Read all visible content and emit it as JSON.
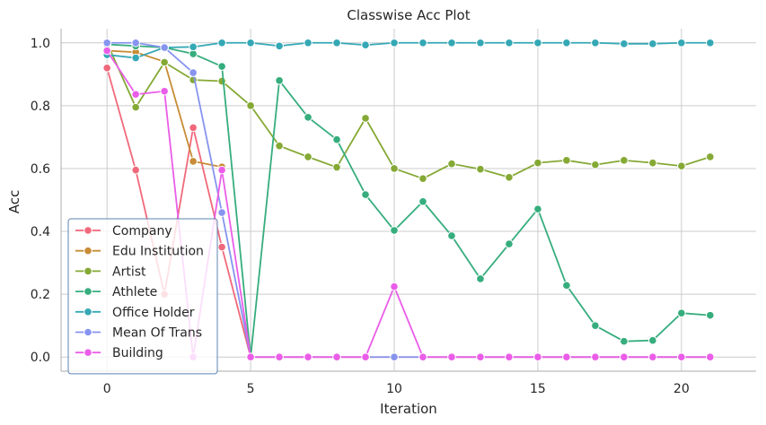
{
  "chart_data": {
    "type": "line",
    "title": "Classwise Acc Plot",
    "xlabel": "Iteration",
    "ylabel": "Acc",
    "xlim": [
      -1.6,
      22.6
    ],
    "ylim": [
      -0.045,
      1.045
    ],
    "x_ticks": [
      0,
      5,
      10,
      15,
      20
    ],
    "y_ticks": [
      0.0,
      0.2,
      0.4,
      0.6,
      0.8,
      1.0
    ],
    "y_tick_labels": [
      "0.0",
      "0.2",
      "0.4",
      "0.6",
      "0.8",
      "1.0"
    ],
    "grid": true,
    "legend_position": "lower-left",
    "x": [
      0,
      1,
      2,
      3,
      4,
      5,
      6,
      7,
      8,
      9,
      10,
      11,
      12,
      13,
      14,
      15,
      16,
      17,
      18,
      19,
      20,
      21
    ],
    "series": [
      {
        "name": "Company",
        "color": "#f0697b",
        "values": [
          0.92,
          0.595,
          0.2,
          0.73,
          0.35,
          0.0,
          0.0,
          0.0,
          0.0,
          0.0,
          0.0,
          0.0,
          0.0,
          0.0,
          0.0,
          0.0,
          0.0,
          0.0,
          0.0,
          0.0,
          0.0,
          0.0
        ]
      },
      {
        "name": "Edu Institution",
        "color": "#c78c35",
        "values": [
          0.975,
          0.97,
          0.94,
          0.623,
          0.605,
          null,
          null,
          null,
          null,
          null,
          null,
          null,
          null,
          null,
          null,
          null,
          null,
          null,
          null,
          null,
          null,
          null
        ]
      },
      {
        "name": "Artist",
        "color": "#85a935",
        "values": [
          1.0,
          0.795,
          0.938,
          0.882,
          0.878,
          0.8,
          0.672,
          0.637,
          0.604,
          0.76,
          0.6,
          0.568,
          0.615,
          0.598,
          0.572,
          0.618,
          0.626,
          0.612,
          0.626,
          0.618,
          0.608,
          0.637
        ]
      },
      {
        "name": "Athlete",
        "color": "#36ad7d",
        "values": [
          0.995,
          0.99,
          0.985,
          0.965,
          0.925,
          0.0,
          0.88,
          0.763,
          0.692,
          0.517,
          0.403,
          0.495,
          0.386,
          0.249,
          0.36,
          0.471,
          0.228,
          0.1,
          0.05,
          0.053,
          0.14,
          0.133
        ]
      },
      {
        "name": "Office Holder",
        "color": "#35a8b5",
        "values": [
          0.962,
          0.952,
          0.985,
          0.987,
          1.0,
          1.0,
          0.99,
          1.0,
          1.0,
          0.993,
          1.0,
          1.0,
          1.0,
          1.0,
          1.0,
          1.0,
          1.0,
          1.0,
          0.997,
          0.997,
          1.0,
          1.0
        ]
      },
      {
        "name": "Mean Of Trans",
        "color": "#8794f0",
        "values": [
          1.0,
          1.0,
          0.985,
          0.905,
          0.46,
          0.0,
          0.0,
          0.0,
          0.0,
          0.0,
          0.0,
          0.0,
          0.0,
          0.0,
          0.0,
          0.0,
          0.0,
          0.0,
          0.0,
          0.0,
          0.0,
          0.0
        ]
      },
      {
        "name": "Building",
        "color": "#ea5de8",
        "values": [
          0.975,
          0.836,
          0.846,
          0.0,
          0.595,
          0.0,
          0.0,
          0.0,
          0.0,
          0.0,
          0.224,
          0.0,
          0.0,
          0.0,
          0.0,
          0.0,
          0.0,
          0.0,
          0.0,
          0.0,
          0.0,
          0.0
        ]
      }
    ]
  }
}
